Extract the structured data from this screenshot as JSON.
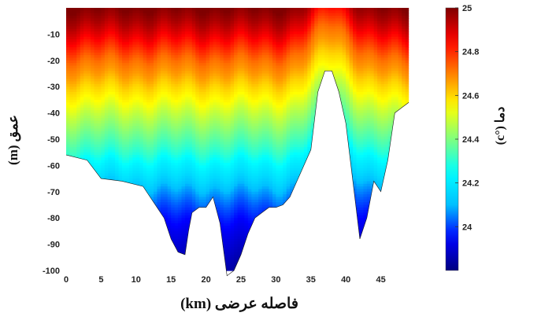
{
  "chart_data": {
    "type": "heatmap",
    "xlabel": "فاصله عرضی (km)",
    "ylabel": "عمق (m)",
    "colorbar_label": "دما (°c)",
    "xlim": [
      0,
      50
    ],
    "ylim": [
      -100,
      0
    ],
    "clim": [
      23.8,
      25.0
    ],
    "x_ticks": [
      "0",
      "5",
      "10",
      "15",
      "20",
      "25",
      "30",
      "35",
      "40",
      "45"
    ],
    "y_ticks": [
      "-10",
      "-20",
      "-30",
      "-40",
      "-50",
      "-60",
      "-70",
      "-80",
      "-90",
      "-100"
    ],
    "colorbar_ticks": [
      "25",
      "24.8",
      "24.6",
      "24.4",
      "24.2",
      "24"
    ],
    "colormap": [
      "#00007f",
      "#0000ff",
      "#00bfff",
      "#00ffff",
      "#7fff7f",
      "#ffff00",
      "#ff8000",
      "#ff0000",
      "#7f0000"
    ],
    "seafloor": {
      "x": [
        0,
        3,
        5,
        8,
        11,
        12,
        13,
        14,
        15,
        16,
        17,
        17.5,
        18,
        19,
        20,
        21,
        22,
        23,
        24,
        25,
        26,
        27,
        28,
        29,
        30,
        31,
        32,
        33,
        34,
        35,
        36,
        37,
        38,
        39,
        40,
        41,
        42,
        43,
        44,
        45,
        46,
        47,
        48,
        49
      ],
      "depth": [
        -56,
        -58,
        -65,
        -66,
        -68,
        -72,
        -76,
        -80,
        -88,
        -93,
        -94,
        -85,
        -78,
        -76,
        -76,
        -72,
        -82,
        -102,
        -100,
        -94,
        -86,
        -80,
        -78,
        -76,
        -76,
        -75,
        -72,
        -66,
        -60,
        -54,
        -32,
        -24,
        -24,
        -32,
        -44,
        -66,
        -88,
        -80,
        -66,
        -70,
        -58,
        -40,
        -38,
        -36
      ]
    },
    "temperature_profile": {
      "depth": [
        0,
        -5,
        -10,
        -15,
        -20,
        -25,
        -30,
        -35,
        -40,
        -45,
        -50,
        -55,
        -60,
        -65,
        -70,
        -75,
        -80,
        -85,
        -90,
        -95,
        -100
      ],
      "temperature": [
        25.0,
        24.95,
        24.88,
        24.8,
        24.72,
        24.67,
        24.6,
        24.55,
        24.48,
        24.42,
        24.36,
        24.3,
        24.22,
        24.16,
        24.08,
        24.02,
        23.97,
        23.93,
        23.9,
        23.87,
        23.84
      ]
    },
    "upwelling": {
      "x": 38,
      "width_km": 3.5,
      "depth_shift_m": 14
    }
  }
}
